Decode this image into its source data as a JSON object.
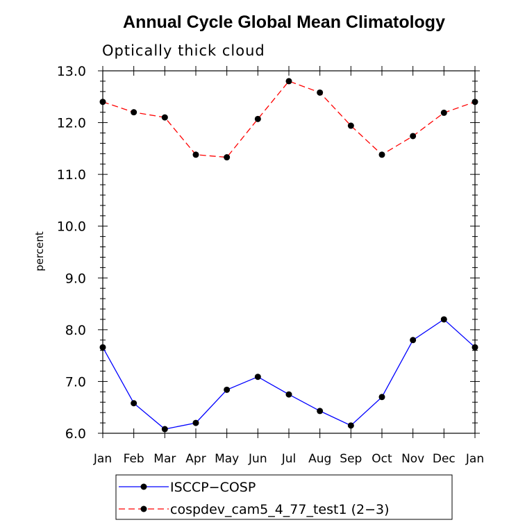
{
  "chart_data": {
    "type": "line",
    "title": "Annual Cycle Global Mean Climatology",
    "subtitle": "Optically thick cloud",
    "xlabel": "",
    "ylabel": "percent",
    "categories": [
      "Jan",
      "Feb",
      "Mar",
      "Apr",
      "May",
      "Jun",
      "Jul",
      "Aug",
      "Sep",
      "Oct",
      "Nov",
      "Dec",
      "Jan"
    ],
    "ylim": [
      6.0,
      13.0
    ],
    "yticks": [
      "6.0",
      "7.0",
      "8.0",
      "9.0",
      "10.0",
      "11.0",
      "12.0",
      "13.0"
    ],
    "grid": false,
    "legend_position": "bottom",
    "series": [
      {
        "name": "ISCCP−COSP",
        "color": "#0000ff",
        "dash": "solid",
        "values": [
          7.66,
          6.58,
          6.08,
          6.2,
          6.84,
          7.09,
          6.75,
          6.43,
          6.15,
          6.7,
          7.8,
          8.2,
          7.66
        ]
      },
      {
        "name": "cospdev_cam5_4_77_test1 (2−3)",
        "color": "#ff0000",
        "dash": "dashed",
        "values": [
          12.4,
          12.2,
          12.1,
          11.38,
          11.33,
          12.07,
          12.8,
          12.58,
          11.94,
          11.38,
          11.74,
          12.19,
          12.4
        ]
      }
    ]
  }
}
